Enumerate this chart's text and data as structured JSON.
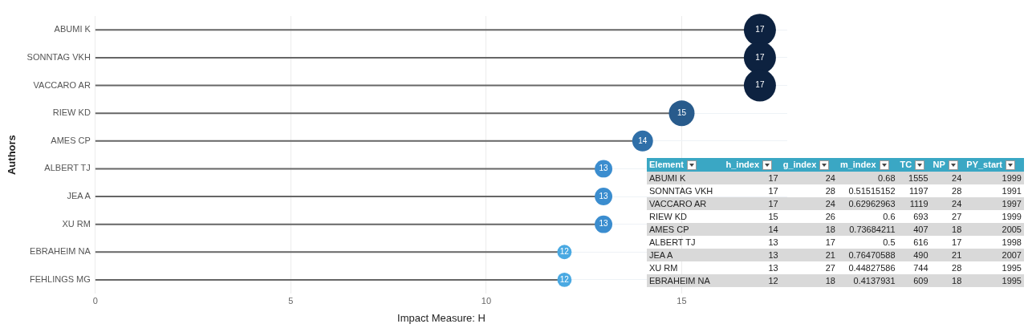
{
  "chart_data": [
    {
      "type": "lollipop",
      "orientation": "horizontal",
      "xlabel": "Impact Measure: H",
      "ylabel": "Authors",
      "categories": [
        "ABUMI K",
        "SONNTAG VKH",
        "VACCARO AR",
        "RIEW KD",
        "AMES CP",
        "ALBERT TJ",
        "JEA A",
        "XU RM",
        "EBRAHEIM NA",
        "FEHLINGS MG"
      ],
      "values": [
        17,
        17,
        17,
        15,
        14,
        13,
        13,
        13,
        12,
        12
      ],
      "colors": [
        "#0d2240",
        "#0d2240",
        "#0d2240",
        "#285b8c",
        "#2f6fa8",
        "#3b8dcf",
        "#3b8dcf",
        "#3b8dcf",
        "#4aa9e2",
        "#4aa9e2"
      ],
      "sizes": [
        1,
        1,
        1,
        0.64,
        0.42,
        0.3,
        0.3,
        0.3,
        0.2,
        0.2
      ],
      "xlim": [
        0,
        17.7
      ],
      "xticks": [
        0,
        5,
        10,
        15
      ],
      "grid": true,
      "data_labels": true,
      "legend": false
    },
    {
      "type": "other",
      "categories": [
        "Element",
        "h_index",
        "g_index",
        "m_index",
        "TC",
        "NP",
        "PY_start"
      ],
      "y_categories": [
        "ABUMI K",
        "SONNTAG VKH",
        "VACCARO AR",
        "RIEW KD",
        "AMES CP",
        "ALBERT TJ",
        "JEA A",
        "XU RM",
        "EBRAHEIM NA"
      ],
      "cell_labels": [
        [
          "17",
          "24",
          "0.68",
          "1555",
          "24",
          "1999"
        ],
        [
          "17",
          "28",
          "0.51515152",
          "1197",
          "28",
          "1991"
        ],
        [
          "17",
          "24",
          "0.62962963",
          "1119",
          "24",
          "1997"
        ],
        [
          "15",
          "26",
          "0.6",
          "693",
          "27",
          "1999"
        ],
        [
          "14",
          "18",
          "0.73684211",
          "407",
          "18",
          "2005"
        ],
        [
          "13",
          "17",
          "0.5",
          "616",
          "17",
          "1998"
        ],
        [
          "13",
          "21",
          "0.76470588",
          "490",
          "21",
          "2007"
        ],
        [
          "13",
          "27",
          "0.44827586",
          "744",
          "28",
          "1995"
        ],
        [
          "12",
          "18",
          "0.4137931",
          "609",
          "18",
          "1995"
        ]
      ]
    }
  ]
}
